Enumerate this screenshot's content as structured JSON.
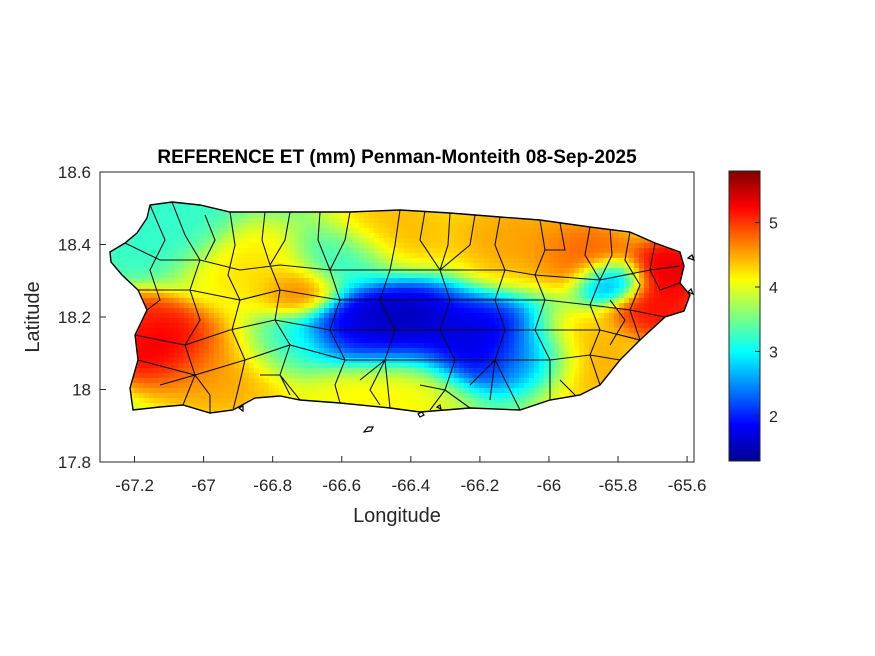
{
  "figure": {
    "title": "REFERENCE ET (mm) Penman-Monteith 08-Sep-2025",
    "xlabel": "Longitude",
    "ylabel": "Latitude",
    "xlim": [
      -67.3,
      -65.58
    ],
    "ylim": [
      17.8,
      18.6
    ],
    "xticks": [
      -67.2,
      -67,
      -66.8,
      -66.6,
      -66.4,
      -66.2,
      -66,
      -65.8,
      -65.6
    ],
    "xtick_labels": [
      "-67.2",
      "-67",
      "-66.8",
      "-66.6",
      "-66.4",
      "-66.2",
      "-66",
      "-65.8",
      "-65.6"
    ],
    "yticks": [
      17.8,
      18,
      18.2,
      18.4,
      18.6
    ],
    "ytick_labels": [
      "17.8",
      "18",
      "18.2",
      "18.4",
      "18.6"
    ]
  },
  "colorbar": {
    "min": 1.3,
    "max": 5.8,
    "ticks": [
      2,
      3,
      4,
      5
    ],
    "tick_labels": [
      "2",
      "3",
      "4",
      "5"
    ],
    "colormap": "jet"
  },
  "map": {
    "region": "Puerto Rico",
    "value_field": "reference evapotranspiration (mm)",
    "hotspots": [
      {
        "lon": -67.12,
        "lat": 18.12,
        "value": 5.6,
        "spread": 0.09
      },
      {
        "lon": -67.18,
        "lat": 18.17,
        "value": 5.1,
        "spread": 0.07
      },
      {
        "lon": -66.95,
        "lat": 18.05,
        "value": 4.6,
        "spread": 0.12
      },
      {
        "lon": -66.72,
        "lat": 18.27,
        "value": 4.9,
        "spread": 0.06
      },
      {
        "lon": -66.85,
        "lat": 18.33,
        "value": 4.3,
        "spread": 0.1
      },
      {
        "lon": -66.45,
        "lat": 18.44,
        "value": 4.5,
        "spread": 0.1
      },
      {
        "lon": -66.1,
        "lat": 18.42,
        "value": 4.6,
        "spread": 0.1
      },
      {
        "lon": -65.9,
        "lat": 18.38,
        "value": 4.9,
        "spread": 0.08
      },
      {
        "lon": -65.65,
        "lat": 18.33,
        "value": 5.5,
        "spread": 0.07
      },
      {
        "lon": -65.68,
        "lat": 18.22,
        "value": 5.3,
        "spread": 0.07
      },
      {
        "lon": -65.92,
        "lat": 18.08,
        "value": 4.6,
        "spread": 0.1
      },
      {
        "lon": -66.5,
        "lat": 17.98,
        "value": 4.2,
        "spread": 0.12
      },
      {
        "lon": -66.45,
        "lat": 18.18,
        "value": 1.4,
        "spread": 0.1
      },
      {
        "lon": -66.56,
        "lat": 18.16,
        "value": 1.7,
        "spread": 0.08
      },
      {
        "lon": -66.2,
        "lat": 18.13,
        "value": 1.6,
        "spread": 0.09
      },
      {
        "lon": -66.05,
        "lat": 18.08,
        "value": 2.0,
        "spread": 0.07
      },
      {
        "lon": -65.82,
        "lat": 18.3,
        "value": 2.3,
        "spread": 0.05
      },
      {
        "lon": -67.1,
        "lat": 18.45,
        "value": 3.2,
        "spread": 0.09
      },
      {
        "lon": -66.6,
        "lat": 18.36,
        "value": 3.1,
        "spread": 0.08
      },
      {
        "lon": -66.75,
        "lat": 18.12,
        "value": 3.0,
        "spread": 0.08
      }
    ]
  }
}
